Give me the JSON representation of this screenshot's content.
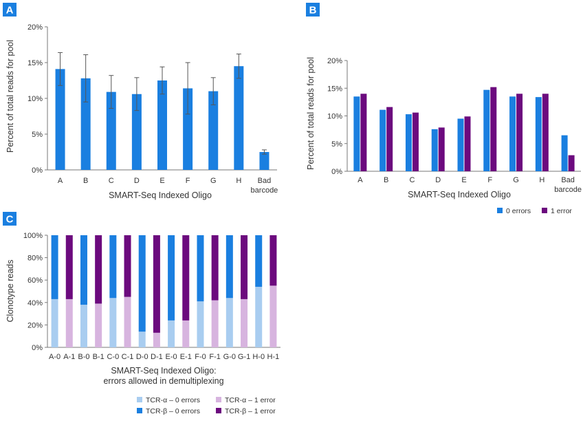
{
  "colors": {
    "blue": "#1a7fe0",
    "purple": "#6c0a7e",
    "light_blue": "#a9cdf0",
    "light_purple": "#d7b4df",
    "axis": "#777777",
    "text": "#333333",
    "badge": "#1a7fe0"
  },
  "chart_data": [
    {
      "panel": "A",
      "type": "bar",
      "title": "",
      "xlabel": "SMART-Seq Indexed Oligo",
      "ylabel": "Percent of total reads for pool",
      "categories": [
        "A",
        "B",
        "C",
        "D",
        "E",
        "F",
        "G",
        "H",
        "Bad barcode"
      ],
      "category_lines": [
        [
          "A"
        ],
        [
          "B"
        ],
        [
          "C"
        ],
        [
          "D"
        ],
        [
          "E"
        ],
        [
          "F"
        ],
        [
          "G"
        ],
        [
          "H"
        ],
        [
          "Bad",
          "barcode"
        ]
      ],
      "values": [
        14.1,
        12.8,
        10.9,
        10.6,
        12.5,
        11.4,
        11.0,
        14.5,
        2.5
      ],
      "error": [
        2.3,
        3.3,
        2.3,
        2.3,
        1.9,
        3.6,
        1.9,
        1.7,
        0.3
      ],
      "ylim": [
        0,
        20
      ],
      "yticks": [
        "0%",
        "5%",
        "10%",
        "15%",
        "20%"
      ],
      "ytick_values": [
        0,
        5,
        10,
        15,
        20
      ]
    },
    {
      "panel": "B",
      "type": "bar",
      "title": "",
      "xlabel": "SMART-Seq Indexed Oligo",
      "ylabel": "Percent of total reads for pool",
      "categories": [
        "A",
        "B",
        "C",
        "D",
        "E",
        "F",
        "G",
        "H",
        "Bad barcode"
      ],
      "category_lines": [
        [
          "A"
        ],
        [
          "B"
        ],
        [
          "C"
        ],
        [
          "D"
        ],
        [
          "E"
        ],
        [
          "F"
        ],
        [
          "G"
        ],
        [
          "H"
        ],
        [
          "Bad",
          "barcode"
        ]
      ],
      "series": [
        {
          "name": "0 errors",
          "values": [
            13.5,
            11.1,
            10.3,
            7.6,
            9.5,
            14.7,
            13.5,
            13.4,
            6.5
          ]
        },
        {
          "name": "1 error",
          "values": [
            14.0,
            11.6,
            10.6,
            7.9,
            9.9,
            15.2,
            14.0,
            14.0,
            2.9
          ]
        }
      ],
      "ylim": [
        0,
        20
      ],
      "yticks": [
        "0%",
        "5%",
        "10%",
        "15%",
        "20%"
      ],
      "ytick_values": [
        0,
        5,
        10,
        15,
        20
      ],
      "legend": [
        "0 errors",
        "1 error"
      ]
    },
    {
      "panel": "C",
      "type": "bar",
      "stacked": true,
      "title": "",
      "xlabel": "SMART-Seq Indexed Oligo:",
      "xlabel2": "errors allowed in demultiplexing",
      "ylabel": "Clonotype reads",
      "categories": [
        "A-0",
        "A-1",
        "B-0",
        "B-1",
        "C-0",
        "C-1",
        "D-0",
        "D-1",
        "E-0",
        "E-1",
        "F-0",
        "F-1",
        "G-0",
        "G-1",
        "H-0",
        "H-1"
      ],
      "series": [
        {
          "name": "TCR-α – 0 errors",
          "values": [
            43,
            0,
            38,
            0,
            44,
            0,
            14,
            0,
            24,
            0,
            41,
            0,
            44,
            0,
            54,
            0
          ]
        },
        {
          "name": "TCR-α – 1 error",
          "values": [
            0,
            43,
            0,
            39,
            0,
            45,
            0,
            13,
            0,
            24,
            0,
            42,
            0,
            43,
            0,
            55
          ]
        },
        {
          "name": "TCR-β – 0 errors",
          "values": [
            57,
            0,
            62,
            0,
            56,
            0,
            86,
            0,
            76,
            0,
            59,
            0,
            56,
            0,
            46,
            0
          ]
        },
        {
          "name": "TCR-β – 1 error",
          "values": [
            0,
            57,
            0,
            61,
            0,
            55,
            0,
            87,
            0,
            76,
            0,
            58,
            0,
            57,
            0,
            45
          ]
        }
      ],
      "ylim": [
        0,
        100
      ],
      "yticks": [
        "0%",
        "20%",
        "40%",
        "60%",
        "80%",
        "100%"
      ],
      "ytick_values": [
        0,
        20,
        40,
        60,
        80,
        100
      ],
      "legend": [
        "TCR-α – 0 errors",
        "TCR-α – 1 error",
        "TCR-β – 0 errors",
        "TCR-β – 1 error"
      ]
    }
  ]
}
